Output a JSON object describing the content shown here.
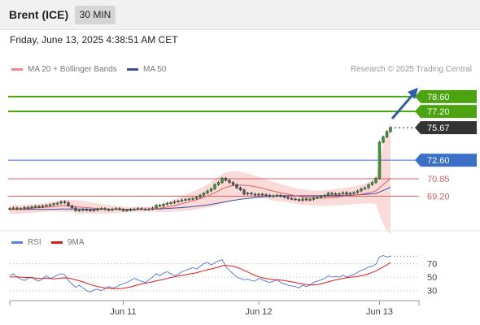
{
  "header": {
    "instrument": "Brent (ICE)",
    "timeframe": "30 MIN"
  },
  "timestamp": "Friday, June 13, 2025 4:38:51 AM CET",
  "legend": {
    "ma20_label": "MA 20 + Bollinger Bands",
    "ma50_label": "MA 50",
    "rsi_label": "RSI",
    "ma9_label": "9MA",
    "credit": "Research © 2025 Trading Central"
  },
  "colors": {
    "green": "#4aa30f",
    "blue": "#3c6fc6",
    "red": "#e06060",
    "dark_tag": "#333333",
    "ma50": "#3a4fa0",
    "bb_fill": "#fbdada",
    "rsi": "#5b82d8",
    "ma9": "#e01a1a"
  },
  "chart_data": [
    {
      "type": "line",
      "title": "",
      "price_scale": [
        66.1,
        80.2
      ],
      "x_ticks": [
        "Jun 11",
        "Jun 12",
        "Jun 13"
      ],
      "levels": [
        {
          "value": 78.6,
          "label": "78.60",
          "role": "target",
          "color": "#4aa30f"
        },
        {
          "value": 77.2,
          "label": "77.20",
          "role": "target",
          "color": "#4aa30f"
        },
        {
          "value": 75.67,
          "label": "75.67",
          "role": "last",
          "color": "#333333"
        },
        {
          "value": 72.6,
          "label": "72.60",
          "role": "pivot",
          "color": "#3c6fc6"
        },
        {
          "value": 70.85,
          "label": "70.85",
          "role": "support",
          "color": "#e06060"
        },
        {
          "value": 69.2,
          "label": "69.20",
          "role": "support",
          "color": "#e06060"
        }
      ],
      "close": [
        68.05,
        68.1,
        68.0,
        68.05,
        68.15,
        68.1,
        68.2,
        68.25,
        68.2,
        68.3,
        68.35,
        68.4,
        68.5,
        68.55,
        68.7,
        68.6,
        68.3,
        68.1,
        67.85,
        67.9,
        67.95,
        67.9,
        67.85,
        67.9,
        68.0,
        68.05,
        67.95,
        67.9,
        68.0,
        68.05,
        67.95,
        67.85,
        67.9,
        67.95,
        68.0,
        68.05,
        68.0,
        67.95,
        68.0,
        68.1,
        68.35,
        68.3,
        68.45,
        68.55,
        68.6,
        68.7,
        68.75,
        68.85,
        68.9,
        68.95,
        69.0,
        69.1,
        69.3,
        69.5,
        69.7,
        69.9,
        70.3,
        70.5,
        70.9,
        70.7,
        70.5,
        70.3,
        70.0,
        69.8,
        69.4,
        69.5,
        69.4,
        69.3,
        69.4,
        69.35,
        69.3,
        69.2,
        69.25,
        69.3,
        69.2,
        69.1,
        69.0,
        68.95,
        68.9,
        68.8,
        68.95,
        68.85,
        68.9,
        69.05,
        69.1,
        69.2,
        69.3,
        69.5,
        69.4,
        69.45,
        69.45,
        69.55,
        69.4,
        69.5,
        69.55,
        69.7,
        69.9,
        70.0,
        70.3,
        70.5,
        70.9,
        74.3,
        74.8,
        75.3,
        75.67
      ],
      "ma20": [
        67.93,
        67.95,
        67.97,
        67.99,
        68.01,
        68.04,
        68.07,
        68.1,
        68.12,
        68.14,
        68.17,
        68.2,
        68.23,
        68.26,
        68.3,
        68.32,
        68.3,
        68.27,
        68.22,
        68.18,
        68.15,
        68.12,
        68.1,
        68.07,
        68.04,
        68.02,
        68.0,
        67.98,
        67.97,
        67.96,
        67.96,
        67.95,
        67.95,
        67.95,
        67.95,
        67.96,
        67.96,
        67.97,
        67.98,
        68.0,
        68.03,
        68.07,
        68.12,
        68.18,
        68.25,
        68.33,
        68.41,
        68.5,
        68.59,
        68.68,
        68.77,
        68.87,
        68.98,
        69.1,
        69.23,
        69.37,
        69.53,
        69.7,
        69.89,
        70.03,
        70.13,
        70.2,
        70.24,
        70.25,
        70.24,
        70.21,
        70.17,
        70.11,
        70.04,
        69.96,
        69.87,
        69.77,
        69.68,
        69.6,
        69.53,
        69.46,
        69.39,
        69.32,
        69.25,
        69.18,
        69.13,
        69.08,
        69.05,
        69.03,
        69.02,
        69.02,
        69.03,
        69.06,
        69.08,
        69.11,
        69.14,
        69.18,
        69.22,
        69.25,
        69.29,
        69.34,
        69.39,
        69.45,
        69.52,
        69.6,
        69.7,
        70.0,
        70.3,
        70.6,
        70.9
      ],
      "bb_upper": [
        68.35,
        68.36,
        68.37,
        68.38,
        68.4,
        68.42,
        68.45,
        68.48,
        68.5,
        68.53,
        68.57,
        68.62,
        68.68,
        68.74,
        68.82,
        68.86,
        68.86,
        68.85,
        68.84,
        68.82,
        68.76,
        68.7,
        68.64,
        68.58,
        68.52,
        68.47,
        68.42,
        68.38,
        68.34,
        68.3,
        68.27,
        68.24,
        68.22,
        68.2,
        68.19,
        68.19,
        68.19,
        68.2,
        68.22,
        68.25,
        68.32,
        68.4,
        68.5,
        68.62,
        68.76,
        68.9,
        69.05,
        69.2,
        69.35,
        69.5,
        69.63,
        69.77,
        69.93,
        70.12,
        70.32,
        70.54,
        70.8,
        71.05,
        71.3,
        71.45,
        71.52,
        71.55,
        71.54,
        71.5,
        71.43,
        71.35,
        71.25,
        71.14,
        71.02,
        70.9,
        70.78,
        70.66,
        70.55,
        70.45,
        70.35,
        70.25,
        70.16,
        70.07,
        69.99,
        69.92,
        69.86,
        69.8,
        69.76,
        69.74,
        69.73,
        69.74,
        69.76,
        69.8,
        69.84,
        69.88,
        69.93,
        69.98,
        70.03,
        70.08,
        70.13,
        70.2,
        70.28,
        70.38,
        70.52,
        70.7,
        70.95,
        72.5,
        74.0,
        75.2,
        76.2
      ],
      "bb_lower": [
        67.5,
        67.52,
        67.55,
        67.58,
        67.6,
        67.62,
        67.65,
        67.67,
        67.7,
        67.72,
        67.74,
        67.76,
        67.76,
        67.76,
        67.75,
        67.74,
        67.72,
        67.7,
        67.6,
        67.54,
        67.54,
        67.56,
        67.56,
        67.56,
        67.56,
        67.57,
        67.58,
        67.58,
        67.6,
        67.62,
        67.64,
        67.66,
        67.68,
        67.7,
        67.71,
        67.72,
        67.73,
        67.74,
        67.74,
        67.75,
        67.74,
        67.72,
        67.7,
        67.72,
        67.74,
        67.76,
        67.77,
        67.8,
        67.83,
        67.86,
        67.91,
        67.97,
        68.03,
        68.08,
        68.14,
        68.2,
        68.26,
        68.35,
        68.48,
        68.61,
        68.74,
        68.85,
        68.94,
        69.0,
        69.05,
        69.07,
        69.09,
        69.08,
        69.06,
        69.02,
        68.96,
        68.88,
        68.81,
        68.75,
        68.71,
        68.67,
        68.62,
        68.57,
        68.51,
        68.44,
        68.4,
        68.36,
        68.34,
        68.32,
        68.31,
        68.3,
        68.3,
        68.32,
        68.32,
        68.34,
        68.35,
        68.38,
        68.41,
        68.42,
        68.45,
        68.48,
        68.5,
        68.52,
        68.52,
        68.5,
        68.45,
        67.5,
        66.6,
        66.0,
        65.6
      ],
      "ma50": [
        67.98,
        67.98,
        67.97,
        67.97,
        67.96,
        67.96,
        67.96,
        67.96,
        67.96,
        67.96,
        67.96,
        67.97,
        67.97,
        67.98,
        67.99,
        68.0,
        68.0,
        68.0,
        67.99,
        67.99,
        67.99,
        67.98,
        67.98,
        67.98,
        67.98,
        67.98,
        67.98,
        67.98,
        67.98,
        67.98,
        67.98,
        67.98,
        67.98,
        67.98,
        67.98,
        67.98,
        67.98,
        67.98,
        67.98,
        67.99,
        68.0,
        68.01,
        68.03,
        68.05,
        68.07,
        68.09,
        68.11,
        68.13,
        68.16,
        68.19,
        68.22,
        68.26,
        68.3,
        68.34,
        68.38,
        68.43,
        68.49,
        68.55,
        68.62,
        68.68,
        68.74,
        68.8,
        68.86,
        68.91,
        68.95,
        68.99,
        69.03,
        69.07,
        69.11,
        69.14,
        69.17,
        69.19,
        69.21,
        69.23,
        69.24,
        69.25,
        69.25,
        69.25,
        69.25,
        69.25,
        69.25,
        69.25,
        69.25,
        69.25,
        69.25,
        69.25,
        69.25,
        69.26,
        69.26,
        69.27,
        69.28,
        69.29,
        69.3,
        69.31,
        69.32,
        69.34,
        69.36,
        69.38,
        69.4,
        69.43,
        69.46,
        69.6,
        69.75,
        69.9,
        70.05
      ]
    },
    {
      "type": "line",
      "title": "",
      "y_range": [
        20,
        85
      ],
      "y_ticks": [
        "70",
        "50",
        "30"
      ],
      "rsi": [
        52,
        55,
        50,
        47,
        45,
        48,
        50,
        46,
        44,
        48,
        52,
        48,
        50,
        53,
        55,
        54,
        45,
        40,
        35,
        38,
        34,
        30,
        28,
        31,
        32,
        30,
        33,
        36,
        34,
        35,
        38,
        40,
        42,
        45,
        48,
        46,
        44,
        42,
        46,
        50,
        55,
        52,
        56,
        58,
        55,
        52,
        54,
        58,
        60,
        62,
        64,
        62,
        66,
        70,
        72,
        68,
        71,
        74,
        76,
        66,
        60,
        55,
        50,
        48,
        46,
        47,
        45,
        44,
        48,
        46,
        44,
        42,
        44,
        46,
        42,
        40,
        38,
        37,
        36,
        34,
        38,
        36,
        38,
        42,
        44,
        46,
        48,
        52,
        50,
        51,
        50,
        53,
        50,
        52,
        54,
        57,
        60,
        62,
        65,
        66,
        69,
        80,
        82,
        80,
        81
      ],
      "ma9": [
        50,
        50.5,
        50.5,
        50,
        49.5,
        49.5,
        49,
        48.5,
        48,
        48,
        48.5,
        48,
        47.5,
        48,
        48.5,
        49,
        48.5,
        47.5,
        46,
        44.5,
        43,
        41,
        39,
        37.5,
        36,
        35,
        34,
        33.5,
        33,
        33,
        33,
        33.5,
        34.5,
        35.5,
        37,
        38.5,
        40,
        41,
        42,
        43,
        44.5,
        45.5,
        46.5,
        48,
        49.5,
        50.5,
        51.5,
        52.5,
        53.5,
        54.5,
        55.5,
        56.5,
        58,
        59.5,
        61,
        62,
        63.5,
        65,
        67,
        67.5,
        67,
        66,
        64.5,
        62.5,
        60,
        57.5,
        55,
        52.5,
        50.5,
        49,
        48,
        47,
        46.5,
        46,
        45.5,
        45,
        44,
        43,
        42,
        41,
        40,
        39,
        38.5,
        38.5,
        39,
        40,
        41.5,
        43,
        44.5,
        46,
        47,
        48,
        49,
        50,
        50.5,
        51,
        52,
        53,
        55,
        57,
        59,
        62,
        65,
        68,
        72
      ]
    }
  ]
}
